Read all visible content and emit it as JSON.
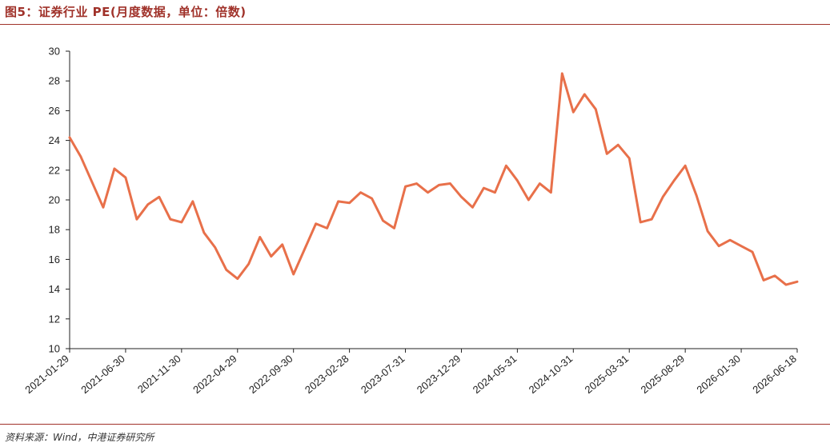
{
  "title": "图5：证券行业 PE(月度数据，单位：倍数)",
  "source": "资料来源：Wind，中港证券研究所",
  "colors": {
    "line": "#e8704a",
    "accent": "#a0322a",
    "axis": "#222222"
  },
  "chart_data": {
    "type": "line",
    "title": "",
    "xlabel": "",
    "ylabel": "",
    "ylim": [
      10,
      30
    ],
    "yticks": [
      10,
      12,
      14,
      16,
      18,
      20,
      22,
      24,
      26,
      28,
      30
    ],
    "grid": false,
    "legend": "none",
    "xticks": [
      "2021-01-29",
      "2021-06-30",
      "2021-11-30",
      "2022-04-29",
      "2022-09-30",
      "2023-02-28",
      "2023-07-31",
      "2023-12-29",
      "2024-05-31",
      "2024-10-31",
      "2025-03-31",
      "2025-08-29",
      "2026-01-30",
      "2026-06-18"
    ],
    "series": [
      {
        "name": "",
        "values": [
          24.2,
          22.9,
          21.2,
          19.5,
          22.1,
          21.5,
          18.7,
          19.7,
          20.2,
          18.7,
          18.5,
          19.9,
          17.8,
          16.8,
          15.3,
          14.7,
          15.7,
          17.5,
          16.2,
          17.0,
          15.0,
          16.7,
          18.4,
          18.1,
          19.9,
          19.8,
          20.5,
          20.1,
          18.6,
          18.1,
          20.9,
          21.1,
          20.5,
          21.0,
          21.1,
          20.2,
          19.5,
          20.8,
          20.5,
          22.3,
          21.3,
          20.0,
          21.1,
          20.5,
          28.5,
          25.9,
          27.1,
          26.1,
          23.1,
          23.7,
          22.8,
          18.5,
          18.7,
          20.2,
          21.3,
          22.3,
          20.3,
          17.9,
          16.9,
          17.3,
          16.9,
          16.5,
          14.6,
          14.9,
          14.3,
          14.5
        ]
      }
    ]
  }
}
